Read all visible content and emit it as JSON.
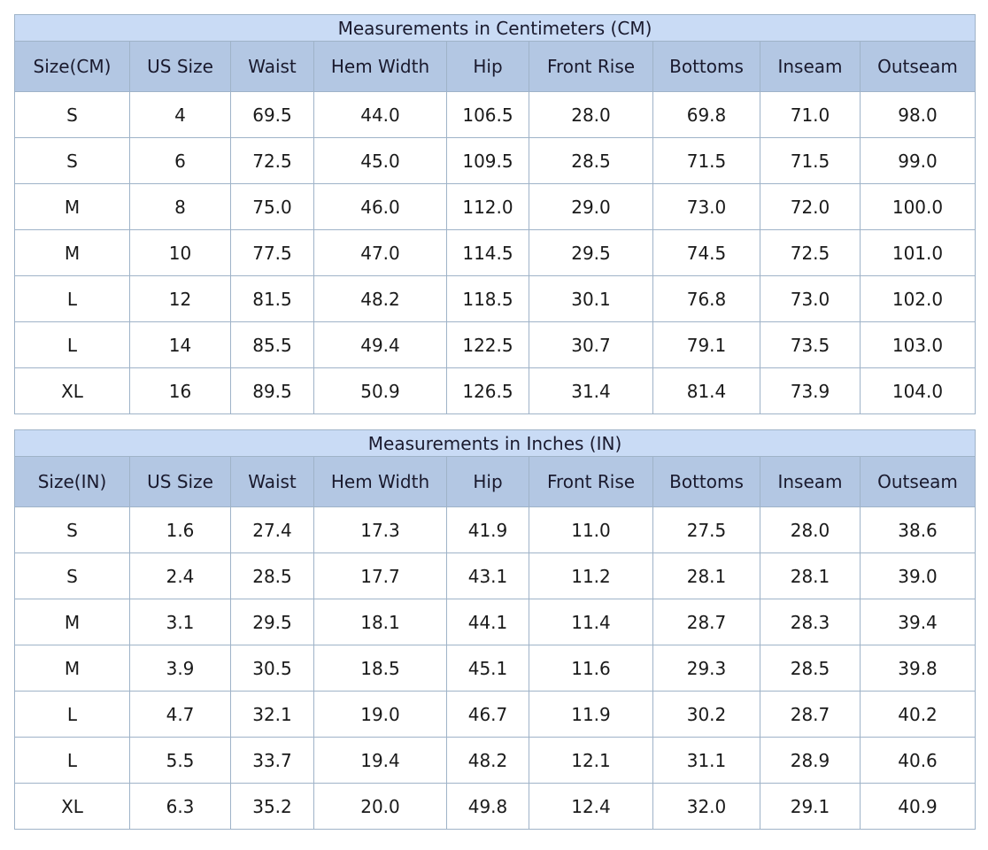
{
  "tables": [
    {
      "title": "Measurements in Centimeters (CM)",
      "headers": [
        "Size(CM)",
        "US Size",
        "Waist",
        "Hem Width",
        "Hip",
        "Front Rise",
        "Bottoms",
        "Inseam",
        "Outseam"
      ],
      "rows": [
        [
          "S",
          "4",
          "69.5",
          "44.0",
          "106.5",
          "28.0",
          "69.8",
          "71.0",
          "98.0"
        ],
        [
          "S",
          "6",
          "72.5",
          "45.0",
          "109.5",
          "28.5",
          "71.5",
          "71.5",
          "99.0"
        ],
        [
          "M",
          "8",
          "75.0",
          "46.0",
          "112.0",
          "29.0",
          "73.0",
          "72.0",
          "100.0"
        ],
        [
          "M",
          "10",
          "77.5",
          "47.0",
          "114.5",
          "29.5",
          "74.5",
          "72.5",
          "101.0"
        ],
        [
          "L",
          "12",
          "81.5",
          "48.2",
          "118.5",
          "30.1",
          "76.8",
          "73.0",
          "102.0"
        ],
        [
          "L",
          "14",
          "85.5",
          "49.4",
          "122.5",
          "30.7",
          "79.1",
          "73.5",
          "103.0"
        ],
        [
          "XL",
          "16",
          "89.5",
          "50.9",
          "126.5",
          "31.4",
          "81.4",
          "73.9",
          "104.0"
        ]
      ]
    },
    {
      "title": "Measurements in Inches (IN)",
      "headers": [
        "Size(IN)",
        "US Size",
        "Waist",
        "Hem Width",
        "Hip",
        "Front Rise",
        "Bottoms",
        "Inseam",
        "Outseam"
      ],
      "rows": [
        [
          "S",
          "1.6",
          "27.4",
          "17.3",
          "41.9",
          "11.0",
          "27.5",
          "28.0",
          "38.6"
        ],
        [
          "S",
          "2.4",
          "28.5",
          "17.7",
          "43.1",
          "11.2",
          "28.1",
          "28.1",
          "39.0"
        ],
        [
          "M",
          "3.1",
          "29.5",
          "18.1",
          "44.1",
          "11.4",
          "28.7",
          "28.3",
          "39.4"
        ],
        [
          "M",
          "3.9",
          "30.5",
          "18.5",
          "45.1",
          "11.6",
          "29.3",
          "28.5",
          "39.8"
        ],
        [
          "L",
          "4.7",
          "32.1",
          "19.0",
          "46.7",
          "11.9",
          "30.2",
          "28.7",
          "40.2"
        ],
        [
          "L",
          "5.5",
          "33.7",
          "19.4",
          "48.2",
          "12.1",
          "31.1",
          "28.9",
          "40.6"
        ],
        [
          "XL",
          "6.3",
          "35.2",
          "20.0",
          "49.8",
          "12.4",
          "32.0",
          "29.1",
          "40.9"
        ]
      ]
    }
  ]
}
